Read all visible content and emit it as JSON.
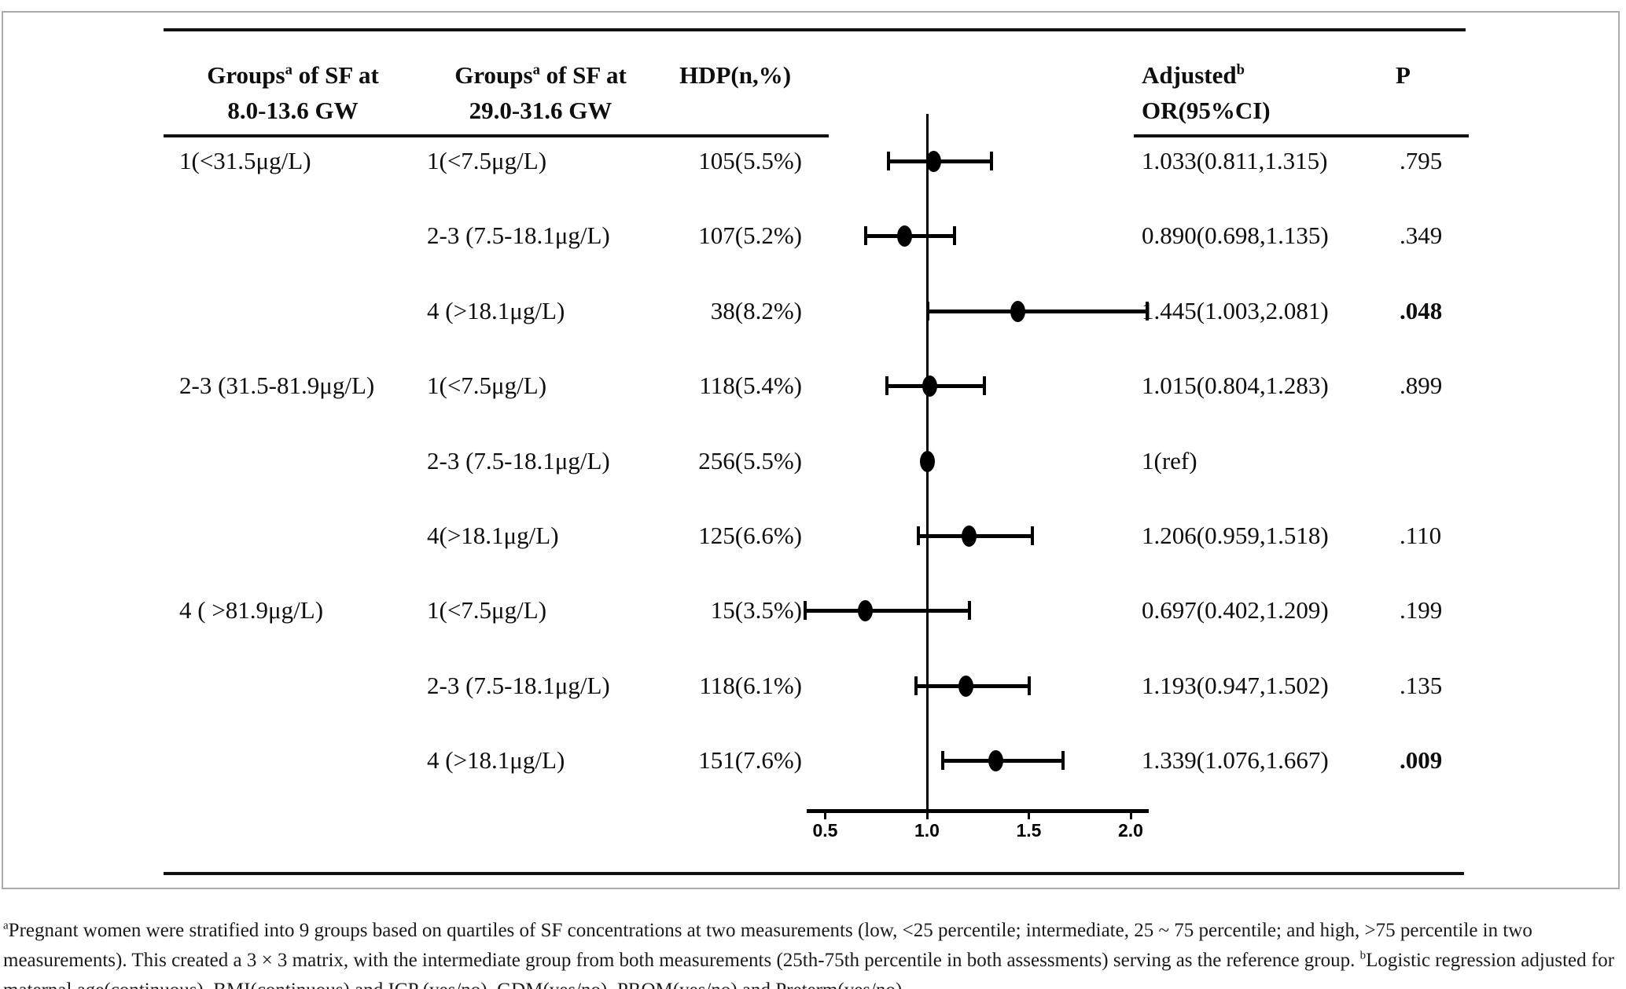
{
  "figure": {
    "headers": {
      "col1": {
        "text": "Groups",
        "sup": "a",
        "rest": " of SF at",
        "line2": "8.0-13.6 GW"
      },
      "col2": {
        "text": "Groups",
        "sup": "a",
        "rest": " of SF at",
        "line2": "29.0-31.6 GW"
      },
      "col3": "HDP(n,%)",
      "col4": {
        "text": "Adjusted",
        "sup": "b",
        "line2": "OR(95%CI)"
      },
      "col5": "P"
    },
    "footnote": {
      "sup_a": "a",
      "part_a": "Pregnant women were stratified into 9 groups based on quartiles of SF concentrations at two measurements (low, <25 percentile; intermediate, 25 ~ 75 percentile; and high, >75 percentile in two measurements). This created a 3 × 3 matrix, with the intermediate group from both measurements (25th-75th percentile in both assessments) serving as the reference group. ",
      "sup_b": "b",
      "part_b": "Logistic regression adjusted for maternal age(continuous), BMI(continuous) and ICP (yes/no), GDM(yes/no), PROM(yes/no) and Preterm(yes/no)."
    }
  },
  "chart_data": {
    "type": "scatter",
    "subtype": "forest plot of adjusted odds ratios with 95% CI",
    "x_ticks": [
      "0.5",
      "1.0",
      "1.5",
      "2.0"
    ],
    "x_tick_values": [
      0.5,
      1.0,
      1.5,
      2.0
    ],
    "x_range": [
      0.41,
      2.09
    ],
    "reference_line": 1.0,
    "grid": false,
    "rows": [
      {
        "group_sf_8_13_6_gw": "1(<31.5μg/L)",
        "group_sf_29_31_6_gw": "1(<7.5μg/L)",
        "hdp_n_pct": "105(5.5%)",
        "or_ci_text": "1.033(0.811,1.315)",
        "or": 1.033,
        "ci_low": 0.811,
        "ci_high": 1.315,
        "p": ".795",
        "p_bold": false,
        "is_reference": false
      },
      {
        "group_sf_8_13_6_gw": "",
        "group_sf_29_31_6_gw": "2-3 (7.5-18.1μg/L)",
        "hdp_n_pct": "107(5.2%)",
        "or_ci_text": "0.890(0.698,1.135)",
        "or": 0.89,
        "ci_low": 0.698,
        "ci_high": 1.135,
        "p": ".349",
        "p_bold": false,
        "is_reference": false
      },
      {
        "group_sf_8_13_6_gw": "",
        "group_sf_29_31_6_gw": "4 (>18.1μg/L)",
        "hdp_n_pct": "38(8.2%)",
        "or_ci_text": "1.445(1.003,2.081)",
        "or": 1.445,
        "ci_low": 1.003,
        "ci_high": 2.081,
        "p": ".048",
        "p_bold": true,
        "is_reference": false
      },
      {
        "group_sf_8_13_6_gw": "2-3 (31.5-81.9μg/L)",
        "group_sf_29_31_6_gw": "1(<7.5μg/L)",
        "hdp_n_pct": "118(5.4%)",
        "or_ci_text": "1.015(0.804,1.283)",
        "or": 1.015,
        "ci_low": 0.804,
        "ci_high": 1.283,
        "p": ".899",
        "p_bold": false,
        "is_reference": false
      },
      {
        "group_sf_8_13_6_gw": "",
        "group_sf_29_31_6_gw": "2-3 (7.5-18.1μg/L)",
        "hdp_n_pct": "256(5.5%)",
        "or_ci_text": "1(ref)",
        "or": 1.0,
        "ci_low": null,
        "ci_high": null,
        "p": "",
        "p_bold": false,
        "is_reference": true
      },
      {
        "group_sf_8_13_6_gw": "",
        "group_sf_29_31_6_gw": "4(>18.1μg/L)",
        "hdp_n_pct": "125(6.6%)",
        "or_ci_text": "1.206(0.959,1.518)",
        "or": 1.206,
        "ci_low": 0.959,
        "ci_high": 1.518,
        "p": ".110",
        "p_bold": false,
        "is_reference": false
      },
      {
        "group_sf_8_13_6_gw": "4 ( >81.9μg/L)",
        "group_sf_29_31_6_gw": "1(<7.5μg/L)",
        "hdp_n_pct": "15(3.5%)",
        "or_ci_text": "0.697(0.402,1.209)",
        "or": 0.697,
        "ci_low": 0.402,
        "ci_high": 1.209,
        "p": ".199",
        "p_bold": false,
        "is_reference": false
      },
      {
        "group_sf_8_13_6_gw": "",
        "group_sf_29_31_6_gw": "2-3 (7.5-18.1μg/L)",
        "hdp_n_pct": "118(6.1%)",
        "or_ci_text": "1.193(0.947,1.502)",
        "or": 1.193,
        "ci_low": 0.947,
        "ci_high": 1.502,
        "p": ".135",
        "p_bold": false,
        "is_reference": false
      },
      {
        "group_sf_8_13_6_gw": "",
        "group_sf_29_31_6_gw": "4 (>18.1μg/L)",
        "hdp_n_pct": "151(7.6%)",
        "or_ci_text": "1.339(1.076,1.667)",
        "or": 1.339,
        "ci_low": 1.076,
        "ci_high": 1.667,
        "p": ".009",
        "p_bold": true,
        "is_reference": false
      }
    ]
  }
}
